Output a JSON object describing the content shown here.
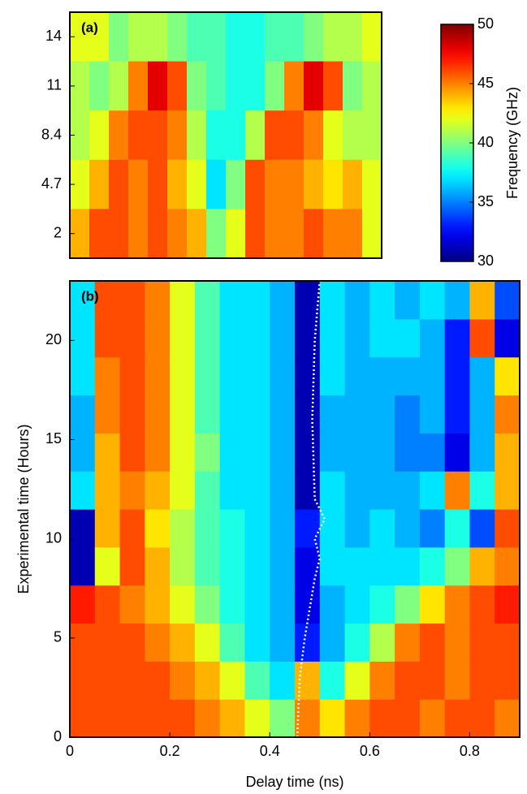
{
  "chart_data": [
    {
      "type": "heatmap",
      "panel_label": "(a)",
      "categories": [
        "14",
        "11",
        "8.4",
        "4.7",
        "2"
      ],
      "z": [
        [
          42,
          42,
          40,
          41,
          41,
          40,
          39,
          39,
          38,
          38,
          39,
          39,
          40,
          41,
          41,
          42
        ],
        [
          41,
          40,
          41,
          45,
          48,
          46,
          40,
          39,
          38,
          38,
          40,
          45,
          48,
          46,
          40,
          41
        ],
        [
          41,
          42,
          45,
          46,
          46,
          45,
          41,
          38,
          38,
          41,
          46,
          46,
          45,
          42,
          41,
          41
        ],
        [
          42,
          44,
          46,
          45,
          46,
          44,
          42,
          37,
          40,
          46,
          45,
          45,
          44,
          43,
          44,
          42
        ],
        [
          44,
          46,
          46,
          45,
          46,
          45,
          44,
          40,
          42,
          46,
          45,
          45,
          46,
          45,
          45,
          42
        ]
      ],
      "clim": [
        30,
        50
      ],
      "cticks": [
        30,
        35,
        40,
        45,
        50
      ],
      "colorbar_label": "Frequency (GHz)"
    },
    {
      "type": "heatmap",
      "panel_label": "(b)",
      "x_label": "Delay time (ns)",
      "y_label": "Experimental time (Hours)",
      "xlim": [
        0,
        0.9
      ],
      "xticks": [
        0,
        0.2,
        0.4,
        0.6,
        0.8
      ],
      "ylim": [
        0,
        23
      ],
      "yticks": [
        0,
        5,
        10,
        15,
        20
      ],
      "z": [
        [
          46,
          46,
          46,
          46,
          46,
          45,
          44,
          42,
          40,
          45,
          43,
          45,
          46,
          46,
          45,
          46,
          46,
          45
        ],
        [
          46,
          46,
          46,
          46,
          45,
          44,
          42,
          39,
          37,
          44,
          38,
          42,
          45,
          46,
          46,
          45,
          46,
          46
        ],
        [
          46,
          46,
          46,
          45,
          44,
          42,
          39,
          37,
          36,
          33,
          36,
          38,
          41,
          45,
          46,
          45,
          46,
          46
        ],
        [
          47,
          46,
          45,
          44,
          42,
          40,
          38,
          37,
          36,
          32,
          36,
          37,
          38,
          40,
          43,
          45,
          46,
          47
        ],
        [
          31,
          42,
          46,
          44,
          41,
          39,
          38,
          37,
          36,
          32,
          37,
          37,
          37,
          37,
          38,
          40,
          44,
          45
        ],
        [
          31,
          44,
          46,
          43,
          41,
          39,
          38,
          37,
          36,
          33,
          37,
          36,
          37,
          36,
          35,
          38,
          34,
          46
        ],
        [
          37,
          44,
          45,
          44,
          42,
          39,
          37,
          37,
          36,
          31,
          37,
          36,
          36,
          36,
          37,
          45,
          38,
          44
        ],
        [
          36,
          44,
          46,
          45,
          42,
          40,
          37,
          37,
          36,
          31,
          36,
          36,
          36,
          35,
          35,
          32,
          36,
          44
        ],
        [
          36,
          45,
          46,
          45,
          42,
          39,
          37,
          37,
          36,
          31,
          36,
          36,
          36,
          35,
          36,
          33,
          36,
          45
        ],
        [
          37,
          45,
          46,
          45,
          42,
          39,
          37,
          37,
          36,
          31,
          37,
          36,
          36,
          36,
          36,
          33,
          36,
          43
        ],
        [
          37,
          46,
          46,
          45,
          42,
          39,
          37,
          37,
          36,
          31,
          37,
          36,
          37,
          37,
          36,
          33,
          46,
          32
        ],
        [
          37,
          46,
          46,
          45,
          42,
          39,
          37,
          37,
          36,
          31,
          37,
          36,
          37,
          36,
          37,
          36,
          44,
          34
        ]
      ],
      "series": [
        {
          "color": "#ffffff",
          "x": [
            0.455,
            0.46,
            0.47,
            0.49,
            0.5,
            0.49,
            0.51,
            0.49,
            0.485,
            0.49,
            0.5
          ],
          "values": [
            0,
            3,
            5,
            8,
            9,
            10,
            11,
            12,
            16,
            20,
            23
          ]
        }
      ]
    }
  ]
}
